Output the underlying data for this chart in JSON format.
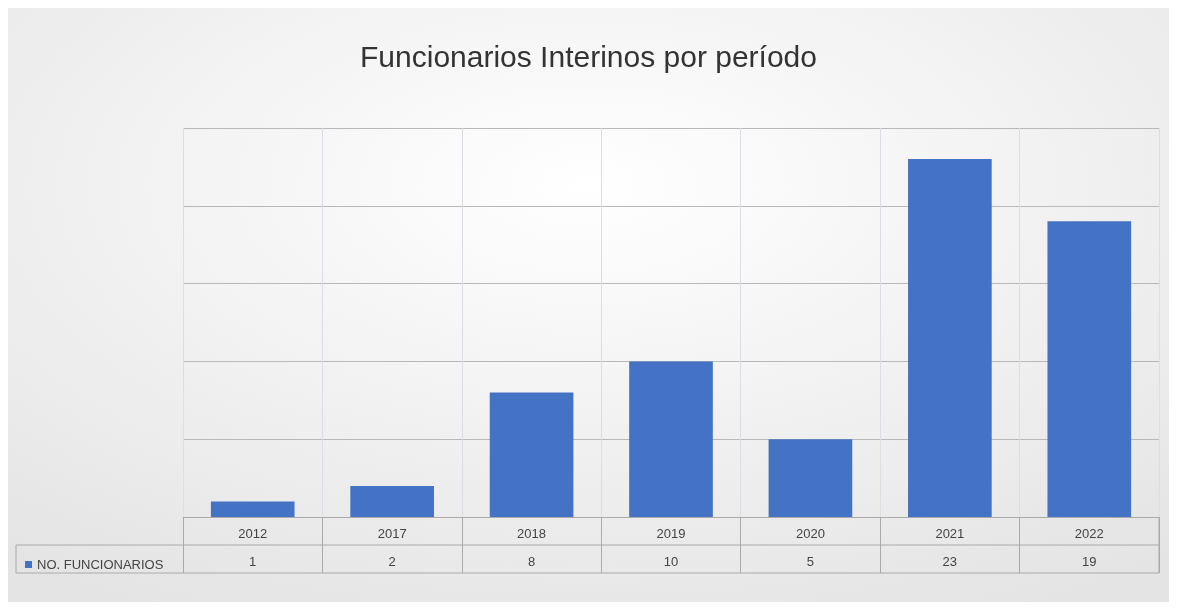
{
  "chart_data": {
    "type": "bar",
    "title": "Funcionarios Interinos por período",
    "categories": [
      "2012",
      "2017",
      "2018",
      "2019",
      "2020",
      "2021",
      "2022"
    ],
    "series": [
      {
        "name": "NO. FUNCIONARIOS",
        "color": "#4472c4",
        "values": [
          1,
          2,
          8,
          10,
          5,
          23,
          19
        ]
      }
    ],
    "ylim": [
      0,
      25
    ],
    "yticks": [
      {
        "value": 0,
        "label": null
      },
      {
        "value": 5,
        "label": null
      },
      {
        "value": 10,
        "label": null
      },
      {
        "value": 15,
        "label": null
      },
      {
        "value": 20,
        "label": null
      },
      {
        "value": 25,
        "label": null
      }
    ],
    "tick_labels": "x",
    "grid": true,
    "data_labels": true,
    "legend": "bottom left"
  }
}
